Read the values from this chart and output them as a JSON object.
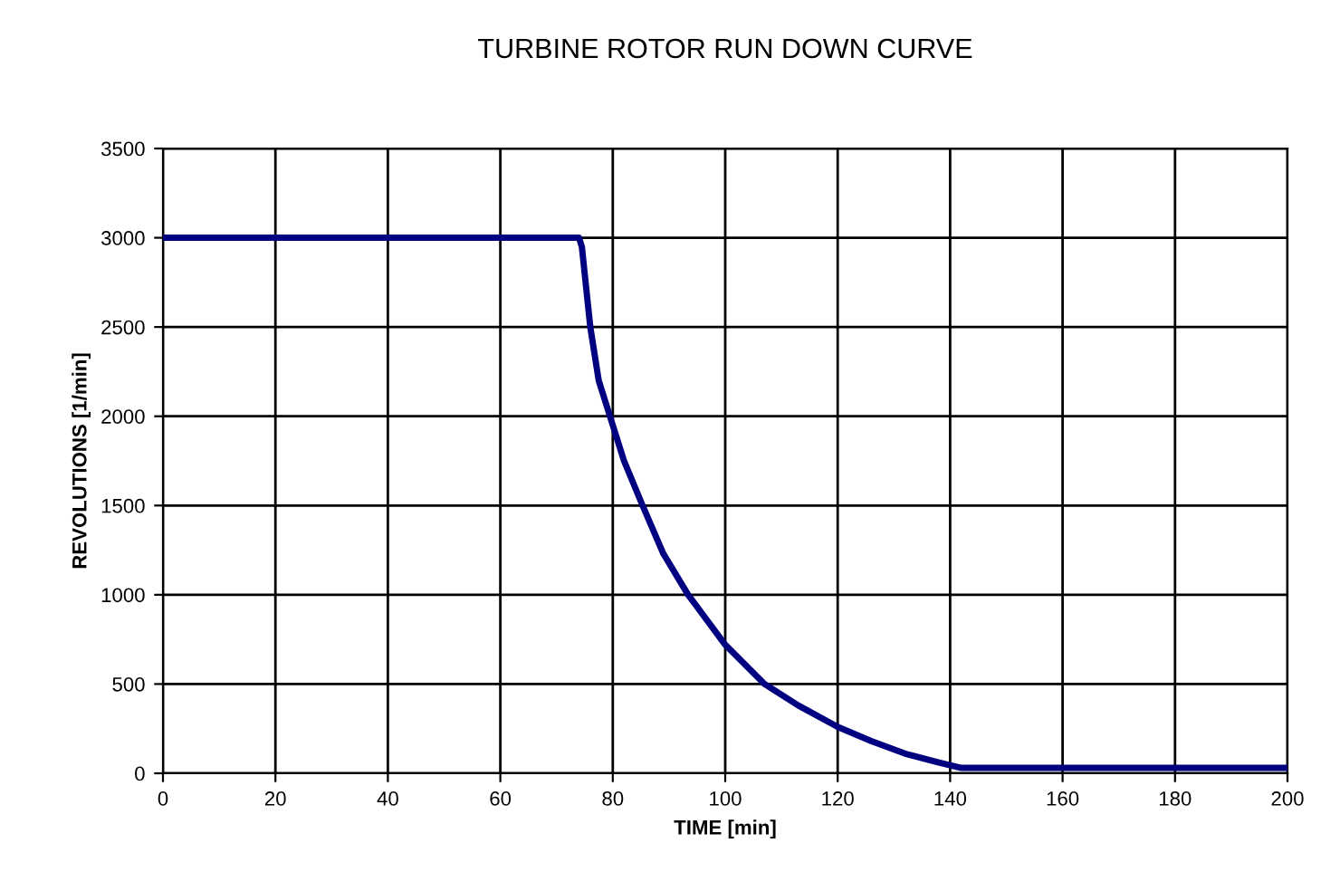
{
  "chart_data": {
    "type": "line",
    "title": "TURBINE ROTOR RUN DOWN CURVE",
    "xlabel": "TIME [min]",
    "ylabel": "REVOLUTIONS [1/min]",
    "series": [
      {
        "color": "#000080",
        "x": [
          0,
          74,
          74.5,
          75,
          76,
          77.5,
          79.5,
          82,
          85.3,
          89,
          93.4,
          100,
          107,
          113,
          120,
          126,
          132,
          138,
          142,
          200
        ],
        "values": [
          3000,
          3000,
          2950,
          2800,
          2500,
          2200,
          2000,
          1750,
          1500,
          1230,
          1000,
          720,
          500,
          380,
          260,
          180,
          110,
          60,
          30,
          30
        ]
      }
    ],
    "xlim": [
      0,
      200
    ],
    "xticks": [
      0,
      20,
      40,
      60,
      80,
      100,
      120,
      140,
      160,
      180,
      200
    ],
    "ylim": [
      0,
      3500
    ],
    "yticks": [
      0,
      500,
      1000,
      1500,
      2000,
      2500,
      3000,
      3500
    ],
    "grid": true,
    "legend": false,
    "marker": "none",
    "line_style": "solid"
  }
}
